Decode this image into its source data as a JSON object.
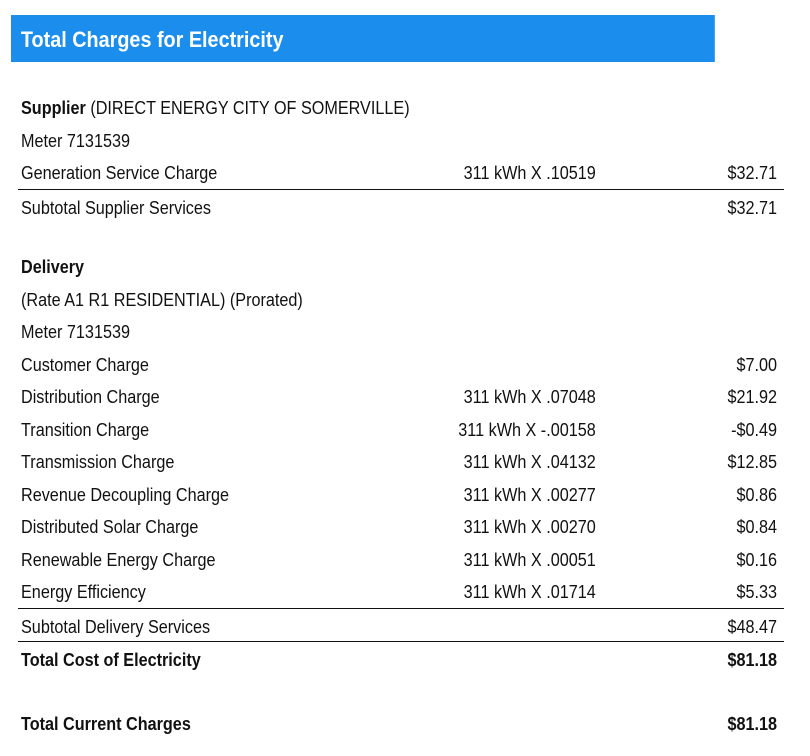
{
  "header": {
    "title": "Total Charges for Electricity"
  },
  "supplier": {
    "heading": "Supplier",
    "name": " (DIRECT ENERGY CITY OF SOMERVILLE)",
    "meter": "Meter 7131539",
    "items": [
      {
        "label": "Generation Service Charge",
        "calc": "311 kWh X .10519",
        "amount": "$32.71"
      }
    ],
    "subtotal": {
      "label": "Subtotal Supplier Services",
      "amount": "$32.71"
    }
  },
  "delivery": {
    "heading": "Delivery",
    "rate": "(Rate A1 R1 RESIDENTIAL) (Prorated)",
    "meter": "Meter 7131539",
    "items": [
      {
        "label": "Customer Charge",
        "calc": "",
        "amount": "$7.00"
      },
      {
        "label": "Distribution Charge",
        "calc": "311 kWh X .07048",
        "amount": "$21.92"
      },
      {
        "label": "Transition Charge",
        "calc": "311 kWh X -.00158",
        "amount": "-$0.49"
      },
      {
        "label": "Transmission Charge",
        "calc": "311 kWh X .04132",
        "amount": "$12.85"
      },
      {
        "label": "Revenue Decoupling Charge",
        "calc": "311 kWh X .00277",
        "amount": "$0.86"
      },
      {
        "label": "Distributed Solar Charge",
        "calc": "311 kWh X .00270",
        "amount": "$0.84"
      },
      {
        "label": "Renewable Energy Charge",
        "calc": "311 kWh X .00051",
        "amount": "$0.16"
      },
      {
        "label": "Energy Efficiency",
        "calc": "311 kWh X .01714",
        "amount": "$5.33"
      }
    ],
    "subtotal": {
      "label": "Subtotal Delivery Services",
      "amount": "$48.47"
    }
  },
  "total_cost": {
    "label": "Total Cost of Electricity",
    "amount": "$81.18"
  },
  "total_current": {
    "label": "Total Current Charges",
    "amount": "$81.18"
  }
}
